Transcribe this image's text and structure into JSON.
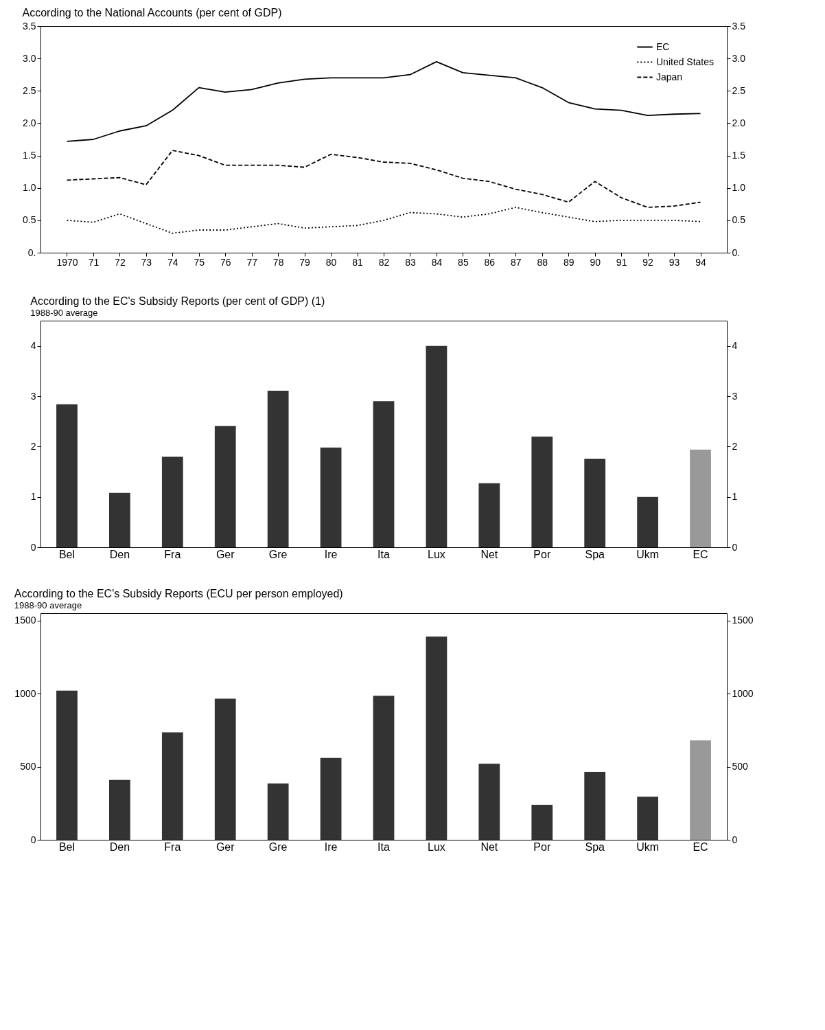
{
  "chart_data": [
    {
      "type": "line",
      "title": "According to the National Accounts (per cent of GDP)",
      "x": [
        1970,
        1971,
        1972,
        1973,
        1974,
        1975,
        1976,
        1977,
        1978,
        1979,
        1980,
        1981,
        1982,
        1983,
        1984,
        1985,
        1986,
        1987,
        1988,
        1989,
        1990,
        1991,
        1992,
        1993,
        1994
      ],
      "series": [
        {
          "name": "EC",
          "color": "#000000",
          "line_style": "solid",
          "values": [
            1.72,
            1.75,
            1.88,
            1.96,
            2.2,
            2.55,
            2.48,
            2.52,
            2.62,
            2.68,
            2.7,
            2.7,
            2.7,
            2.75,
            2.95,
            2.78,
            2.74,
            2.7,
            2.55,
            2.32,
            2.22,
            2.2,
            2.12,
            2.14,
            2.15
          ]
        },
        {
          "name": "United States",
          "color": "#000000",
          "line_style": "dotted",
          "values": [
            0.5,
            0.47,
            0.6,
            0.45,
            0.3,
            0.35,
            0.35,
            0.4,
            0.45,
            0.38,
            0.4,
            0.42,
            0.5,
            0.62,
            0.6,
            0.55,
            0.6,
            0.7,
            0.62,
            0.55,
            0.48,
            0.5,
            0.5,
            0.5,
            0.48
          ]
        },
        {
          "name": "Japan",
          "color": "#000000",
          "line_style": "dashed",
          "values": [
            1.12,
            1.14,
            1.16,
            1.05,
            1.58,
            1.5,
            1.35,
            1.35,
            1.35,
            1.32,
            1.52,
            1.47,
            1.4,
            1.38,
            1.28,
            1.15,
            1.1,
            0.98,
            0.9,
            0.78,
            1.1,
            0.85,
            0.7,
            0.72,
            0.78
          ]
        }
      ],
      "xlim": [
        1969,
        1995
      ],
      "xticks": [
        {
          "value": 1970,
          "label": "1970"
        },
        {
          "value": 1971,
          "label": "71"
        },
        {
          "value": 1972,
          "label": "72"
        },
        {
          "value": 1973,
          "label": "73"
        },
        {
          "value": 1974,
          "label": "74"
        },
        {
          "value": 1975,
          "label": "75"
        },
        {
          "value": 1976,
          "label": "76"
        },
        {
          "value": 1977,
          "label": "77"
        },
        {
          "value": 1978,
          "label": "78"
        },
        {
          "value": 1979,
          "label": "79"
        },
        {
          "value": 1980,
          "label": "80"
        },
        {
          "value": 1981,
          "label": "81"
        },
        {
          "value": 1982,
          "label": "82"
        },
        {
          "value": 1983,
          "label": "83"
        },
        {
          "value": 1984,
          "label": "84"
        },
        {
          "value": 1985,
          "label": "85"
        },
        {
          "value": 1986,
          "label": "86"
        },
        {
          "value": 1987,
          "label": "87"
        },
        {
          "value": 1988,
          "label": "88"
        },
        {
          "value": 1989,
          "label": "89"
        },
        {
          "value": 1990,
          "label": "90"
        },
        {
          "value": 1991,
          "label": "91"
        },
        {
          "value": 1992,
          "label": "92"
        },
        {
          "value": 1993,
          "label": "93"
        },
        {
          "value": 1994,
          "label": "94"
        }
      ],
      "ylim": [
        0,
        3.5
      ],
      "yticks": [
        {
          "value": 0,
          "label": "0."
        },
        {
          "value": 0.5,
          "label": "0.5"
        },
        {
          "value": 1,
          "label": "1.0"
        },
        {
          "value": 1.5,
          "label": "1.5"
        },
        {
          "value": 2,
          "label": "2.0"
        },
        {
          "value": 2.5,
          "label": "2.5"
        },
        {
          "value": 3,
          "label": "3.0"
        },
        {
          "value": 3.5,
          "label": "3.5"
        }
      ],
      "y2lim": [
        0,
        3.5
      ],
      "y2ticks": [
        {
          "value": 0,
          "label": "0."
        },
        {
          "value": 0.5,
          "label": "0.5"
        },
        {
          "value": 1,
          "label": "1.0"
        },
        {
          "value": 1.5,
          "label": "1.5"
        },
        {
          "value": 2,
          "label": "2.0"
        },
        {
          "value": 2.5,
          "label": "2.5"
        },
        {
          "value": 3,
          "label": "3.0"
        },
        {
          "value": 3.5,
          "label": "3.5"
        }
      ],
      "legend": "top right",
      "grid": false,
      "marker": "none"
    },
    {
      "type": "bar",
      "title": "According to the EC's Subsidy Reports (per cent of GDP) (1)",
      "subtitle": "1988-90 average",
      "categories": [
        "Bel",
        "Den",
        "Fra",
        "Ger",
        "Gre",
        "Ire",
        "Ita",
        "Lux",
        "Net",
        "Por",
        "Spa",
        "Ukm",
        "EC"
      ],
      "values": [
        2.84,
        1.08,
        1.8,
        2.41,
        3.11,
        1.98,
        2.9,
        4.0,
        1.27,
        2.2,
        1.76,
        1.0,
        1.94
      ],
      "colors": [
        "#333333",
        "#333333",
        "#333333",
        "#333333",
        "#333333",
        "#333333",
        "#333333",
        "#333333",
        "#333333",
        "#333333",
        "#333333",
        "#333333",
        "#999999"
      ],
      "ylim": [
        0,
        4.5
      ],
      "yticks": [
        0,
        1,
        2,
        3,
        4
      ],
      "y2lim": [
        0,
        4.5
      ],
      "y2ticks": [
        0,
        1,
        2,
        3,
        4
      ],
      "grid": false
    },
    {
      "type": "bar",
      "title": "According to the EC's Subsidy Reports (ECU per person employed)",
      "subtitle": "1988-90 average",
      "categories": [
        "Bel",
        "Den",
        "Fra",
        "Ger",
        "Gre",
        "Ire",
        "Ita",
        "Lux",
        "Net",
        "Por",
        "Spa",
        "Ukm",
        "EC"
      ],
      "values": [
        1020,
        410,
        735,
        965,
        385,
        560,
        985,
        1390,
        520,
        240,
        465,
        295,
        680
      ],
      "colors": [
        "#333333",
        "#333333",
        "#333333",
        "#333333",
        "#333333",
        "#333333",
        "#333333",
        "#333333",
        "#333333",
        "#333333",
        "#333333",
        "#333333",
        "#999999"
      ],
      "ylim": [
        0,
        1550
      ],
      "yticks": [
        0,
        500,
        1000,
        1500
      ],
      "y2lim": [
        0,
        1550
      ],
      "y2ticks": [
        0,
        500,
        1000,
        1500
      ],
      "grid": false
    }
  ]
}
